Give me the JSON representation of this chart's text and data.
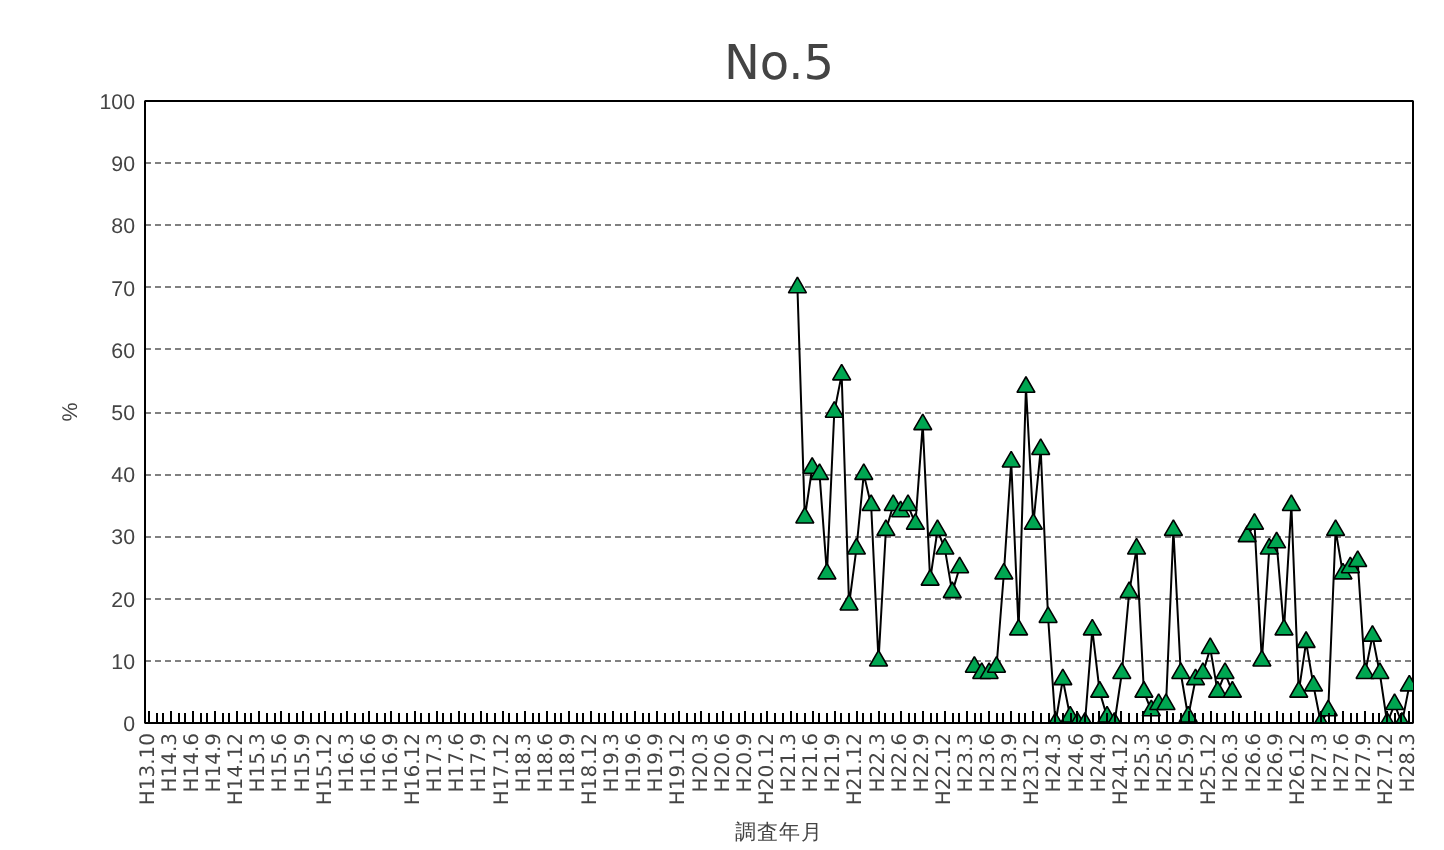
{
  "chart_data": {
    "type": "line",
    "title": "No.5",
    "xlabel": "調査年月",
    "ylabel": "%",
    "categories": [
      "H13.10",
      null,
      null,
      "H14.3",
      null,
      null,
      "H14.6",
      null,
      null,
      "H14.9",
      null,
      null,
      "H14.12",
      null,
      null,
      "H15.3",
      null,
      null,
      "H15.6",
      null,
      null,
      "H15.9",
      null,
      null,
      "H15.12",
      null,
      null,
      "H16.3",
      null,
      null,
      "H16.6",
      null,
      null,
      "H16.9",
      null,
      null,
      "H16.12",
      null,
      null,
      "H17.3",
      null,
      null,
      "H17.6",
      null,
      null,
      "H17.9",
      null,
      null,
      "H17.12",
      null,
      null,
      "H18.3",
      null,
      null,
      "H18.6",
      null,
      null,
      "H18.9",
      null,
      null,
      "H18.12",
      null,
      null,
      "H19.3",
      null,
      null,
      "H19.6",
      null,
      null,
      "H19.9",
      null,
      null,
      "H19.12",
      null,
      null,
      "H20.3",
      null,
      null,
      "H20.6",
      null,
      null,
      "H20.9",
      null,
      null,
      "H20.12",
      null,
      null,
      "H21.3",
      null,
      null,
      "H21.6",
      null,
      null,
      "H21.9",
      null,
      null,
      "H21.12",
      null,
      null,
      "H22.3",
      null,
      null,
      "H22.6",
      null,
      null,
      "H22.9",
      null,
      null,
      "H22.12",
      null,
      null,
      "H23.3",
      null,
      null,
      "H23.6",
      null,
      null,
      "H23.9",
      null,
      null,
      "H23.12",
      null,
      null,
      "H24.3",
      null,
      null,
      "H24.6",
      null,
      null,
      "H24.9",
      null,
      null,
      "H24.12",
      null,
      null,
      "H25.3",
      null,
      null,
      "H25.6",
      null,
      null,
      "H25.9",
      null,
      null,
      "H25.12",
      null,
      null,
      "H26.3",
      null,
      null,
      "H26.6",
      null,
      null,
      "H26.9",
      null,
      null,
      "H26.12",
      null,
      null,
      "H27.3",
      null,
      null,
      "H27.6",
      null,
      null,
      "H27.9",
      null,
      null,
      "H27.12",
      null,
      null,
      "H28.3"
    ],
    "series": [
      {
        "color": "#00a651",
        "values": [
          null,
          null,
          null,
          null,
          null,
          null,
          null,
          null,
          null,
          null,
          null,
          null,
          null,
          null,
          null,
          null,
          null,
          null,
          null,
          null,
          null,
          null,
          null,
          null,
          null,
          null,
          null,
          null,
          null,
          null,
          null,
          null,
          null,
          null,
          null,
          null,
          null,
          null,
          null,
          null,
          null,
          null,
          null,
          null,
          null,
          null,
          null,
          null,
          null,
          null,
          null,
          null,
          null,
          null,
          null,
          null,
          null,
          null,
          null,
          null,
          null,
          null,
          null,
          null,
          null,
          null,
          null,
          null,
          null,
          null,
          null,
          null,
          null,
          null,
          null,
          null,
          null,
          null,
          null,
          null,
          null,
          null,
          null,
          null,
          null,
          null,
          null,
          null,
          70,
          33,
          41,
          40,
          24,
          50,
          56,
          19,
          28,
          40,
          35,
          10,
          31,
          35,
          34,
          35,
          32,
          48,
          23,
          31,
          28,
          21,
          25,
          null,
          9,
          8,
          8,
          9,
          24,
          42,
          15,
          54,
          32,
          44,
          17,
          0,
          7,
          1,
          0,
          0,
          15,
          5,
          1,
          0,
          8,
          21,
          28,
          5,
          2,
          3,
          3,
          31,
          8,
          1,
          7,
          8,
          12,
          5,
          8,
          5,
          null,
          30,
          32,
          10,
          28,
          29,
          15,
          35,
          5,
          13,
          6,
          0,
          2,
          31,
          24,
          25,
          26,
          8,
          14,
          8,
          0,
          3,
          0,
          6
        ]
      }
    ],
    "ylim": [
      0,
      100
    ],
    "yticks": [
      0,
      10,
      20,
      30,
      40,
      50,
      60,
      70,
      80,
      90,
      100
    ],
    "grid": "y",
    "marker": "triangle",
    "line_style": "solid"
  }
}
